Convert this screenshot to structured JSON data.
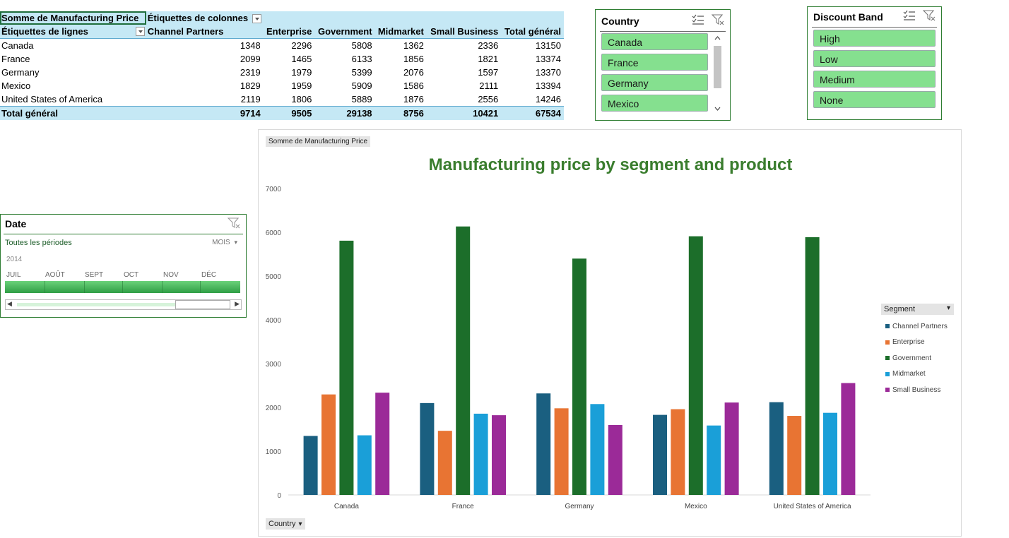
{
  "pivot": {
    "value_field": "Somme de Manufacturing Price",
    "col_labels": "Étiquettes de colonnes",
    "row_labels": "Étiquettes de lignes",
    "columns": [
      "Channel Partners",
      "Enterprise",
      "Government",
      "Midmarket",
      "Small Business",
      "Total général"
    ],
    "rows": [
      {
        "label": "Canada",
        "values": [
          "1348",
          "2296",
          "5808",
          "1362",
          "2336",
          "13150"
        ]
      },
      {
        "label": "France",
        "values": [
          "2099",
          "1465",
          "6133",
          "1856",
          "1821",
          "13374"
        ]
      },
      {
        "label": "Germany",
        "values": [
          "2319",
          "1979",
          "5399",
          "2076",
          "1597",
          "13370"
        ]
      },
      {
        "label": "Mexico",
        "values": [
          "1829",
          "1959",
          "5909",
          "1586",
          "2111",
          "13394"
        ]
      },
      {
        "label": "United States of America",
        "values": [
          "2119",
          "1806",
          "5889",
          "1876",
          "2556",
          "14246"
        ]
      }
    ],
    "total": {
      "label": "Total général",
      "values": [
        "9714",
        "9505",
        "29138",
        "8756",
        "10421",
        "67534"
      ]
    }
  },
  "slicer_country": {
    "title": "Country",
    "items": [
      "Canada",
      "France",
      "Germany",
      "Mexico"
    ]
  },
  "slicer_discount": {
    "title": "Discount Band",
    "items": [
      "High",
      "Low",
      "Medium",
      "None"
    ]
  },
  "timeline": {
    "title": "Date",
    "all_periods": "Toutes les périodes",
    "level": "MOIS",
    "year": "2014",
    "months": [
      "JUIL",
      "AOÛT",
      "SEPT",
      "OCT",
      "NOV",
      "DÉC"
    ]
  },
  "chart": {
    "field_button_value": "Somme  de Manufacturing Price",
    "field_button_axis": "Country",
    "field_button_legend": "Segment",
    "colors": [
      "#1a5f80",
      "#e87433",
      "#1c6e2a",
      "#1a9fd8",
      "#9b2a98"
    ]
  },
  "chart_data": {
    "type": "bar",
    "title": "Manufacturing price by segment and product",
    "xlabel": "",
    "ylabel": "",
    "ylim": [
      0,
      7000
    ],
    "yticks": [
      0,
      1000,
      2000,
      3000,
      4000,
      5000,
      6000,
      7000
    ],
    "legend_position": "right",
    "categories": [
      "Canada",
      "France",
      "Germany",
      "Mexico",
      "United States of America"
    ],
    "series": [
      {
        "name": "Channel Partners",
        "values": [
          1348,
          2099,
          2319,
          1829,
          2119
        ]
      },
      {
        "name": "Enterprise",
        "values": [
          2296,
          1465,
          1979,
          1959,
          1806
        ]
      },
      {
        "name": "Government",
        "values": [
          5808,
          6133,
          5399,
          5909,
          5889
        ]
      },
      {
        "name": "Midmarket",
        "values": [
          1362,
          1856,
          2076,
          1586,
          1876
        ]
      },
      {
        "name": "Small Business",
        "values": [
          2336,
          1821,
          1597,
          2111,
          2556
        ]
      }
    ]
  }
}
